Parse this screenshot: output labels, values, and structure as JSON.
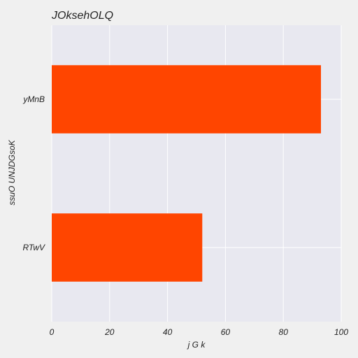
{
  "chart_data": {
    "type": "bar",
    "orientation": "horizontal",
    "title": "JOksehOLQ",
    "xlabel": "j G k",
    "ylabel": "ssuO UNJDGsoK",
    "categories": [
      "yMnB",
      "RTwV"
    ],
    "series": [
      {
        "values": [
          93,
          52
        ]
      }
    ],
    "xlim": [
      0,
      100
    ],
    "xticks": [
      "0",
      "20",
      "40",
      "60",
      "80",
      "100"
    ],
    "grid": true,
    "legend": "none"
  },
  "colors": {
    "bar": "#ff4500",
    "plot_background": "#e8e8f0",
    "figure_background": "#f0f0f0",
    "grid": "#ffffff"
  }
}
